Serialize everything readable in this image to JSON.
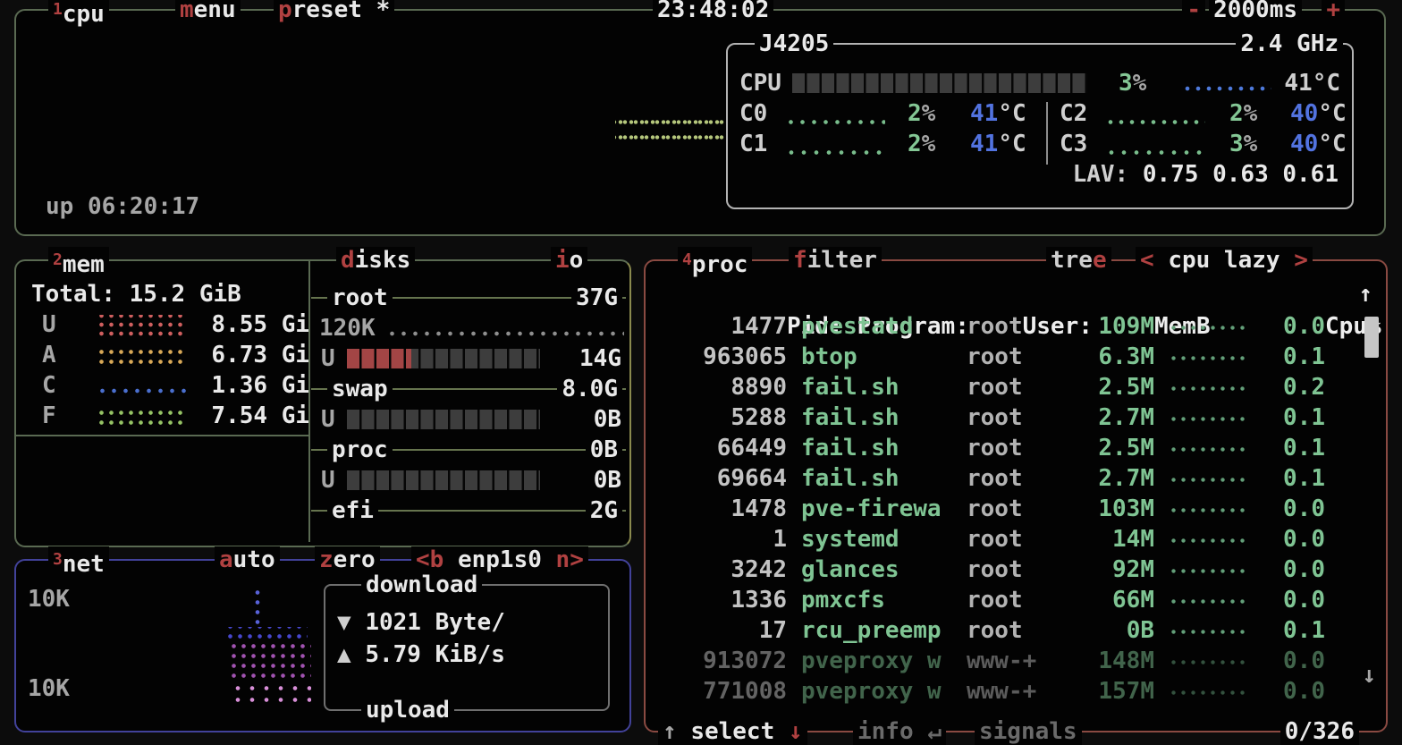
{
  "titlebar": {
    "box_num": "1",
    "box_title": "cpu",
    "menu_key": "m",
    "menu_rest": "enu",
    "preset_key": "p",
    "preset_rest": "reset *",
    "clock": "23:48:02",
    "minus": "-",
    "interval": "2000ms",
    "plus": "+"
  },
  "cpu": {
    "model": "J4205",
    "freq": "2.4 GHz",
    "uptime": "up 06:20:17",
    "total_label": "CPU",
    "total_pct": "3",
    "pct_unit": "%",
    "total_temp": "41",
    "temp_unit": "°C",
    "cores": [
      {
        "label": "C0",
        "pct": "2",
        "temp": "41"
      },
      {
        "label": "C1",
        "pct": "2",
        "temp": "41"
      },
      {
        "label": "C2",
        "pct": "2",
        "temp": "40"
      },
      {
        "label": "C3",
        "pct": "3",
        "temp": "40"
      }
    ],
    "lav_label": "LAV:",
    "lav_values": "0.75 0.63 0.61"
  },
  "mem": {
    "box_num": "2",
    "box_title": "mem",
    "total": "Total: 15.2 GiB",
    "rows": [
      {
        "key": "U",
        "value": "8.55 Gi"
      },
      {
        "key": "A",
        "value": "6.73 Gi"
      },
      {
        "key": "C",
        "value": "1.36 Gi"
      },
      {
        "key": "F",
        "value": "7.54 Gi"
      }
    ]
  },
  "disks": {
    "title_key": "d",
    "title_rest": "isks",
    "io_key": "i",
    "io_rest": "o",
    "sections": [
      {
        "name": "root",
        "total": "37G",
        "io": "120K",
        "used_label": "U",
        "used": "14G"
      },
      {
        "name": "swap",
        "total": "8.0G",
        "used_label": "U",
        "used": "0B"
      },
      {
        "name": "proc",
        "total": "0B",
        "used_label": "U",
        "used": "0B"
      },
      {
        "name": "efi",
        "total": "2G"
      }
    ]
  },
  "net": {
    "box_num": "3",
    "box_title": "net",
    "auto_key": "a",
    "auto_rest": "uto",
    "zero_key": "z",
    "zero_rest": "ero",
    "iface_left": "<b",
    "iface": "enp1s0",
    "iface_right": "n>",
    "scale_top": "10K",
    "scale_bottom": "10K",
    "download_label": "download",
    "upload_label": "upload",
    "down_arrow": "▼",
    "down_value": "1021 Byte/",
    "up_arrow": "▲",
    "up_value": "5.79 KiB/s"
  },
  "proc": {
    "box_num": "4",
    "box_title": "proc",
    "filter_key": "f",
    "filter_rest": "ilter",
    "tree_pre": "tre",
    "tree_key": "e",
    "sort_left": "<",
    "sort_label": "cpu lazy",
    "sort_right": ">",
    "columns": {
      "pid": "Pid:",
      "program": "Program:",
      "user": "User:",
      "mem": "MemB",
      "cpu": "Cpu%",
      "sort_arrow": "↑"
    },
    "rows": [
      {
        "pid": "1477",
        "program": "pvestatd",
        "user": "root",
        "mem": "109M",
        "cpu": "0.0",
        "dim": false
      },
      {
        "pid": "963065",
        "program": "btop",
        "user": "root",
        "mem": "6.3M",
        "cpu": "0.1",
        "dim": false
      },
      {
        "pid": "8890",
        "program": "fail.sh",
        "user": "root",
        "mem": "2.5M",
        "cpu": "0.2",
        "dim": false
      },
      {
        "pid": "5288",
        "program": "fail.sh",
        "user": "root",
        "mem": "2.7M",
        "cpu": "0.1",
        "dim": false
      },
      {
        "pid": "66449",
        "program": "fail.sh",
        "user": "root",
        "mem": "2.5M",
        "cpu": "0.1",
        "dim": false
      },
      {
        "pid": "69664",
        "program": "fail.sh",
        "user": "root",
        "mem": "2.7M",
        "cpu": "0.1",
        "dim": false
      },
      {
        "pid": "1478",
        "program": "pve-firewa",
        "user": "root",
        "mem": "103M",
        "cpu": "0.0",
        "dim": false
      },
      {
        "pid": "1",
        "program": "systemd",
        "user": "root",
        "mem": "14M",
        "cpu": "0.0",
        "dim": false
      },
      {
        "pid": "3242",
        "program": "glances",
        "user": "root",
        "mem": "92M",
        "cpu": "0.0",
        "dim": false
      },
      {
        "pid": "1336",
        "program": "pmxcfs",
        "user": "root",
        "mem": "66M",
        "cpu": "0.0",
        "dim": false
      },
      {
        "pid": "17",
        "program": "rcu_preemp",
        "user": "root",
        "mem": "0B",
        "cpu": "0.1",
        "dim": false
      },
      {
        "pid": "913072",
        "program": "pveproxy w",
        "user": "www-+",
        "mem": "148M",
        "cpu": "0.0",
        "dim": true
      },
      {
        "pid": "771008",
        "program": "pveproxy w",
        "user": "www-+",
        "mem": "157M",
        "cpu": "0.0",
        "dim": true
      }
    ],
    "scroll_down": "↓",
    "footer": {
      "up": "↑",
      "select": "select",
      "down": "↓",
      "info": "info",
      "enter": "↵",
      "signals": "signals",
      "count": "0/326"
    }
  }
}
